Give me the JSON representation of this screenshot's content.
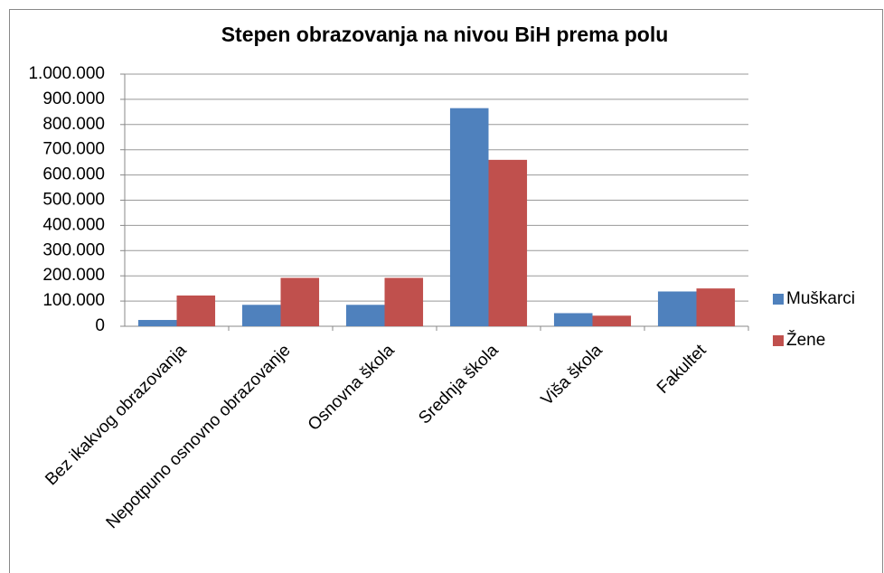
{
  "chart_data": {
    "type": "bar",
    "title": "Stepen obrazovanja na nivou BiH prema polu",
    "categories": [
      "Bez ikakvog obrazovanja",
      "Nepotpuno osnovno obrazovanje",
      "Osnovna škola",
      "Srednja škola",
      "Viša škola",
      "Fakultet"
    ],
    "series": [
      {
        "name": "Muškarci",
        "color": "#4f81bd",
        "values": [
          25000,
          85000,
          85000,
          865000,
          52000,
          138000
        ]
      },
      {
        "name": "Žene",
        "color": "#c0504d",
        "values": [
          122000,
          192000,
          192000,
          660000,
          42000,
          150000
        ]
      }
    ],
    "ylim": [
      0,
      1000000
    ],
    "yticks": [
      0,
      {
        "value": 100000,
        "label": "100.000"
      },
      {
        "value": 200000,
        "label": "200.000"
      },
      {
        "value": 300000,
        "label": "300.000"
      },
      {
        "value": 400000,
        "label": "400.000"
      },
      {
        "value": 500000,
        "label": "500.000"
      },
      {
        "value": 600000,
        "label": "600.000"
      },
      {
        "value": 700000,
        "label": "700.000"
      },
      {
        "value": 800000,
        "label": "800.000"
      },
      {
        "value": 900000,
        "label": "900.000"
      },
      {
        "value": 1000000,
        "label": "1.000.000"
      }
    ],
    "grid": true,
    "legend": "right"
  }
}
